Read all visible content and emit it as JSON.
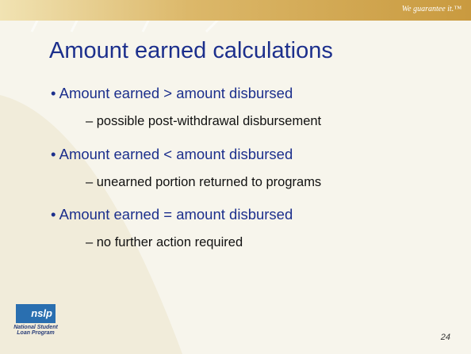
{
  "header": {
    "tagline": "We guarantee it.™"
  },
  "slide": {
    "title": "Amount earned calculations",
    "bullets": [
      {
        "text": "Amount earned > amount disbursed",
        "sub": "– possible post-withdrawal disbursement"
      },
      {
        "text": "Amount earned < amount disbursed",
        "sub": "– unearned portion returned to programs"
      },
      {
        "text": "Amount earned = amount disbursed",
        "sub": "– no further action required"
      }
    ]
  },
  "footer": {
    "logo": "nslp",
    "logo_caption": "National Student Loan Program",
    "page": "24"
  }
}
